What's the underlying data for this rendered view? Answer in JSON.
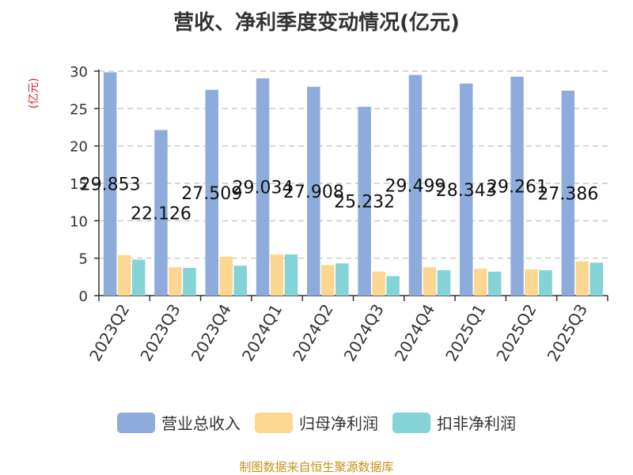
{
  "chart_data": {
    "type": "bar",
    "title": "营收、净利季度变动情况(亿元)",
    "ylabel": "(亿元)",
    "ylim": [
      0,
      30
    ],
    "yticks": [
      0,
      5,
      10,
      15,
      20,
      25,
      30
    ],
    "grid": true,
    "legend_position": "bottom",
    "categories": [
      "2023Q2",
      "2023Q3",
      "2023Q4",
      "2024Q1",
      "2024Q2",
      "2024Q3",
      "2024Q4",
      "2025Q1",
      "2025Q2",
      "2025Q3"
    ],
    "series": [
      {
        "name": "营业总收入",
        "color": "#8eacdb",
        "values": [
          29.853,
          22.126,
          27.509,
          29.034,
          27.908,
          25.232,
          29.499,
          28.343,
          29.261,
          27.386
        ]
      },
      {
        "name": "归母净利润",
        "color": "#fdd692",
        "values": [
          5.4,
          3.8,
          5.2,
          5.5,
          4.1,
          3.2,
          3.8,
          3.6,
          3.5,
          4.6
        ]
      },
      {
        "name": "扣非净利润",
        "color": "#84d3d6",
        "values": [
          4.8,
          3.7,
          4.0,
          5.5,
          4.3,
          2.6,
          3.4,
          3.2,
          3.4,
          4.4
        ]
      }
    ],
    "data_labels": [
      "29.853",
      "22.126",
      "27.509",
      "29.034",
      "27.908",
      "25.232",
      "29.499",
      "28.343",
      "29.261",
      "27.386"
    ]
  },
  "colors": {
    "ylabel": "#e02020",
    "source": "#c8901a",
    "axis": "#333333",
    "grid": "#cccccc"
  },
  "source_text": "制图数据来自恒生聚源数据库"
}
